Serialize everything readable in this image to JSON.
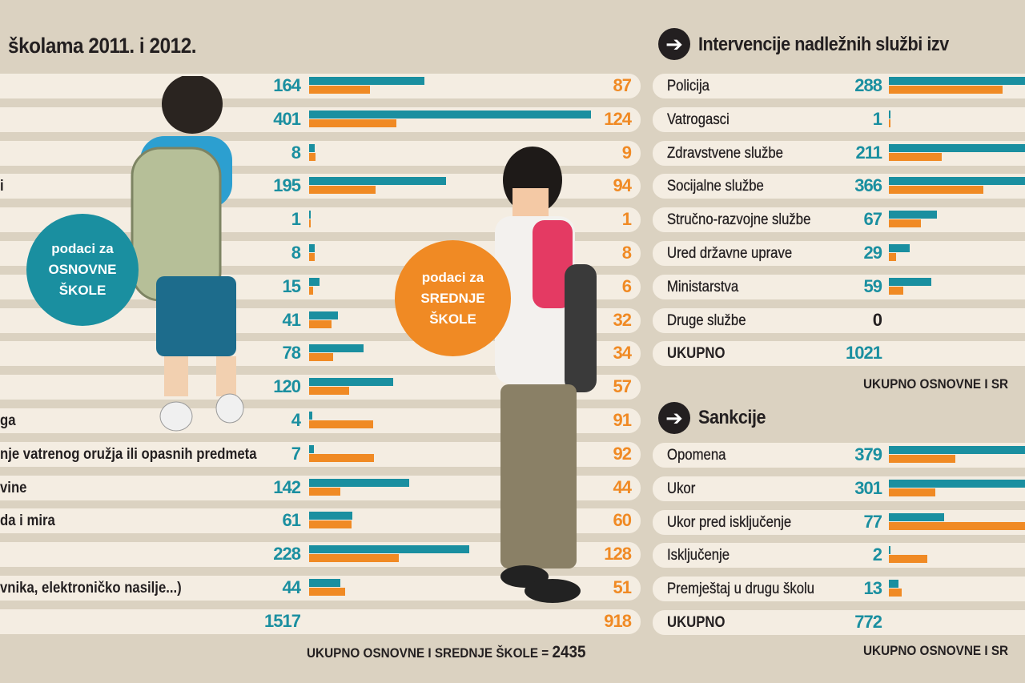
{
  "colors": {
    "primary": "#1a8fa0",
    "secondary": "#f08a24",
    "background": "#dbd2c1",
    "row": "#f4ede2"
  },
  "left": {
    "title": "školama 2011. i 2012.",
    "badge_primary": [
      "podaci za",
      "OSNOVNE",
      "ŠKOLE"
    ],
    "badge_secondary": [
      "podaci za",
      "SREDNJE",
      "ŠKOLE"
    ],
    "footer_label": "UKUPNO OSNOVNE I SREDNJE ŠKOLE = ",
    "footer_value": "2435",
    "total_primary": "1517",
    "total_secondary": "918"
  },
  "right": {
    "title_interventions": "Intervencije nadležnih službi izv",
    "footer_interventions": "UKUPNO OSNOVNE I SR",
    "title_sanctions": "Sankcije",
    "footer_sanctions": "UKUPNO OSNOVNE I SR"
  },
  "chart_data": [
    {
      "type": "bar",
      "orientation": "horizontal",
      "categories": [
        "",
        "",
        "",
        "i",
        "",
        "",
        "",
        "",
        "",
        "",
        "ga",
        "nje vatrenog oružja ili opasnih predmeta",
        "vine",
        "da i mira",
        "",
        "vnika, elektroničko nasilje...)"
      ],
      "series": [
        {
          "name": "OSNOVNE ŠKOLE",
          "values": [
            164,
            401,
            8,
            195,
            1,
            8,
            15,
            41,
            78,
            120,
            4,
            7,
            142,
            61,
            228,
            44
          ]
        },
        {
          "name": "SREDNJE ŠKOLE",
          "values": [
            87,
            124,
            9,
            94,
            1,
            8,
            6,
            32,
            34,
            57,
            91,
            92,
            44,
            60,
            128,
            51
          ]
        }
      ],
      "total_label": "",
      "totals": [
        1517,
        918
      ]
    },
    {
      "type": "bar",
      "orientation": "horizontal",
      "title": "Intervencije nadležnih službi izv",
      "categories": [
        "Policija",
        "Vatrogasci",
        "Zdravstvene službe",
        "Socijalne službe",
        "Stručno-razvojne službe",
        "Ured državne uprave",
        "Ministarstva",
        "Druge službe"
      ],
      "series": [
        {
          "name": "OSNOVNE ŠKOLE",
          "values": [
            288,
            1,
            211,
            366,
            67,
            29,
            59,
            0
          ]
        },
        {
          "name": "SREDNJE ŠKOLE",
          "values": [
            158,
            1,
            73,
            131,
            44,
            10,
            20,
            0
          ]
        }
      ],
      "total_label": "UKUPNO",
      "totals": [
        1021
      ]
    },
    {
      "type": "bar",
      "orientation": "horizontal",
      "title": "Sankcije",
      "categories": [
        "Opomena",
        "Ukor",
        "Ukor pred isključenje",
        "Isključenje",
        "Premještaj u drugu školu"
      ],
      "series": [
        {
          "name": "OSNOVNE ŠKOLE",
          "values": [
            379,
            301,
            77,
            2,
            13
          ]
        },
        {
          "name": "SREDNJE ŠKOLE",
          "values": [
            92,
            64,
            200,
            53,
            18
          ]
        }
      ],
      "total_label": "UKUPNO",
      "totals": [
        772
      ]
    }
  ]
}
